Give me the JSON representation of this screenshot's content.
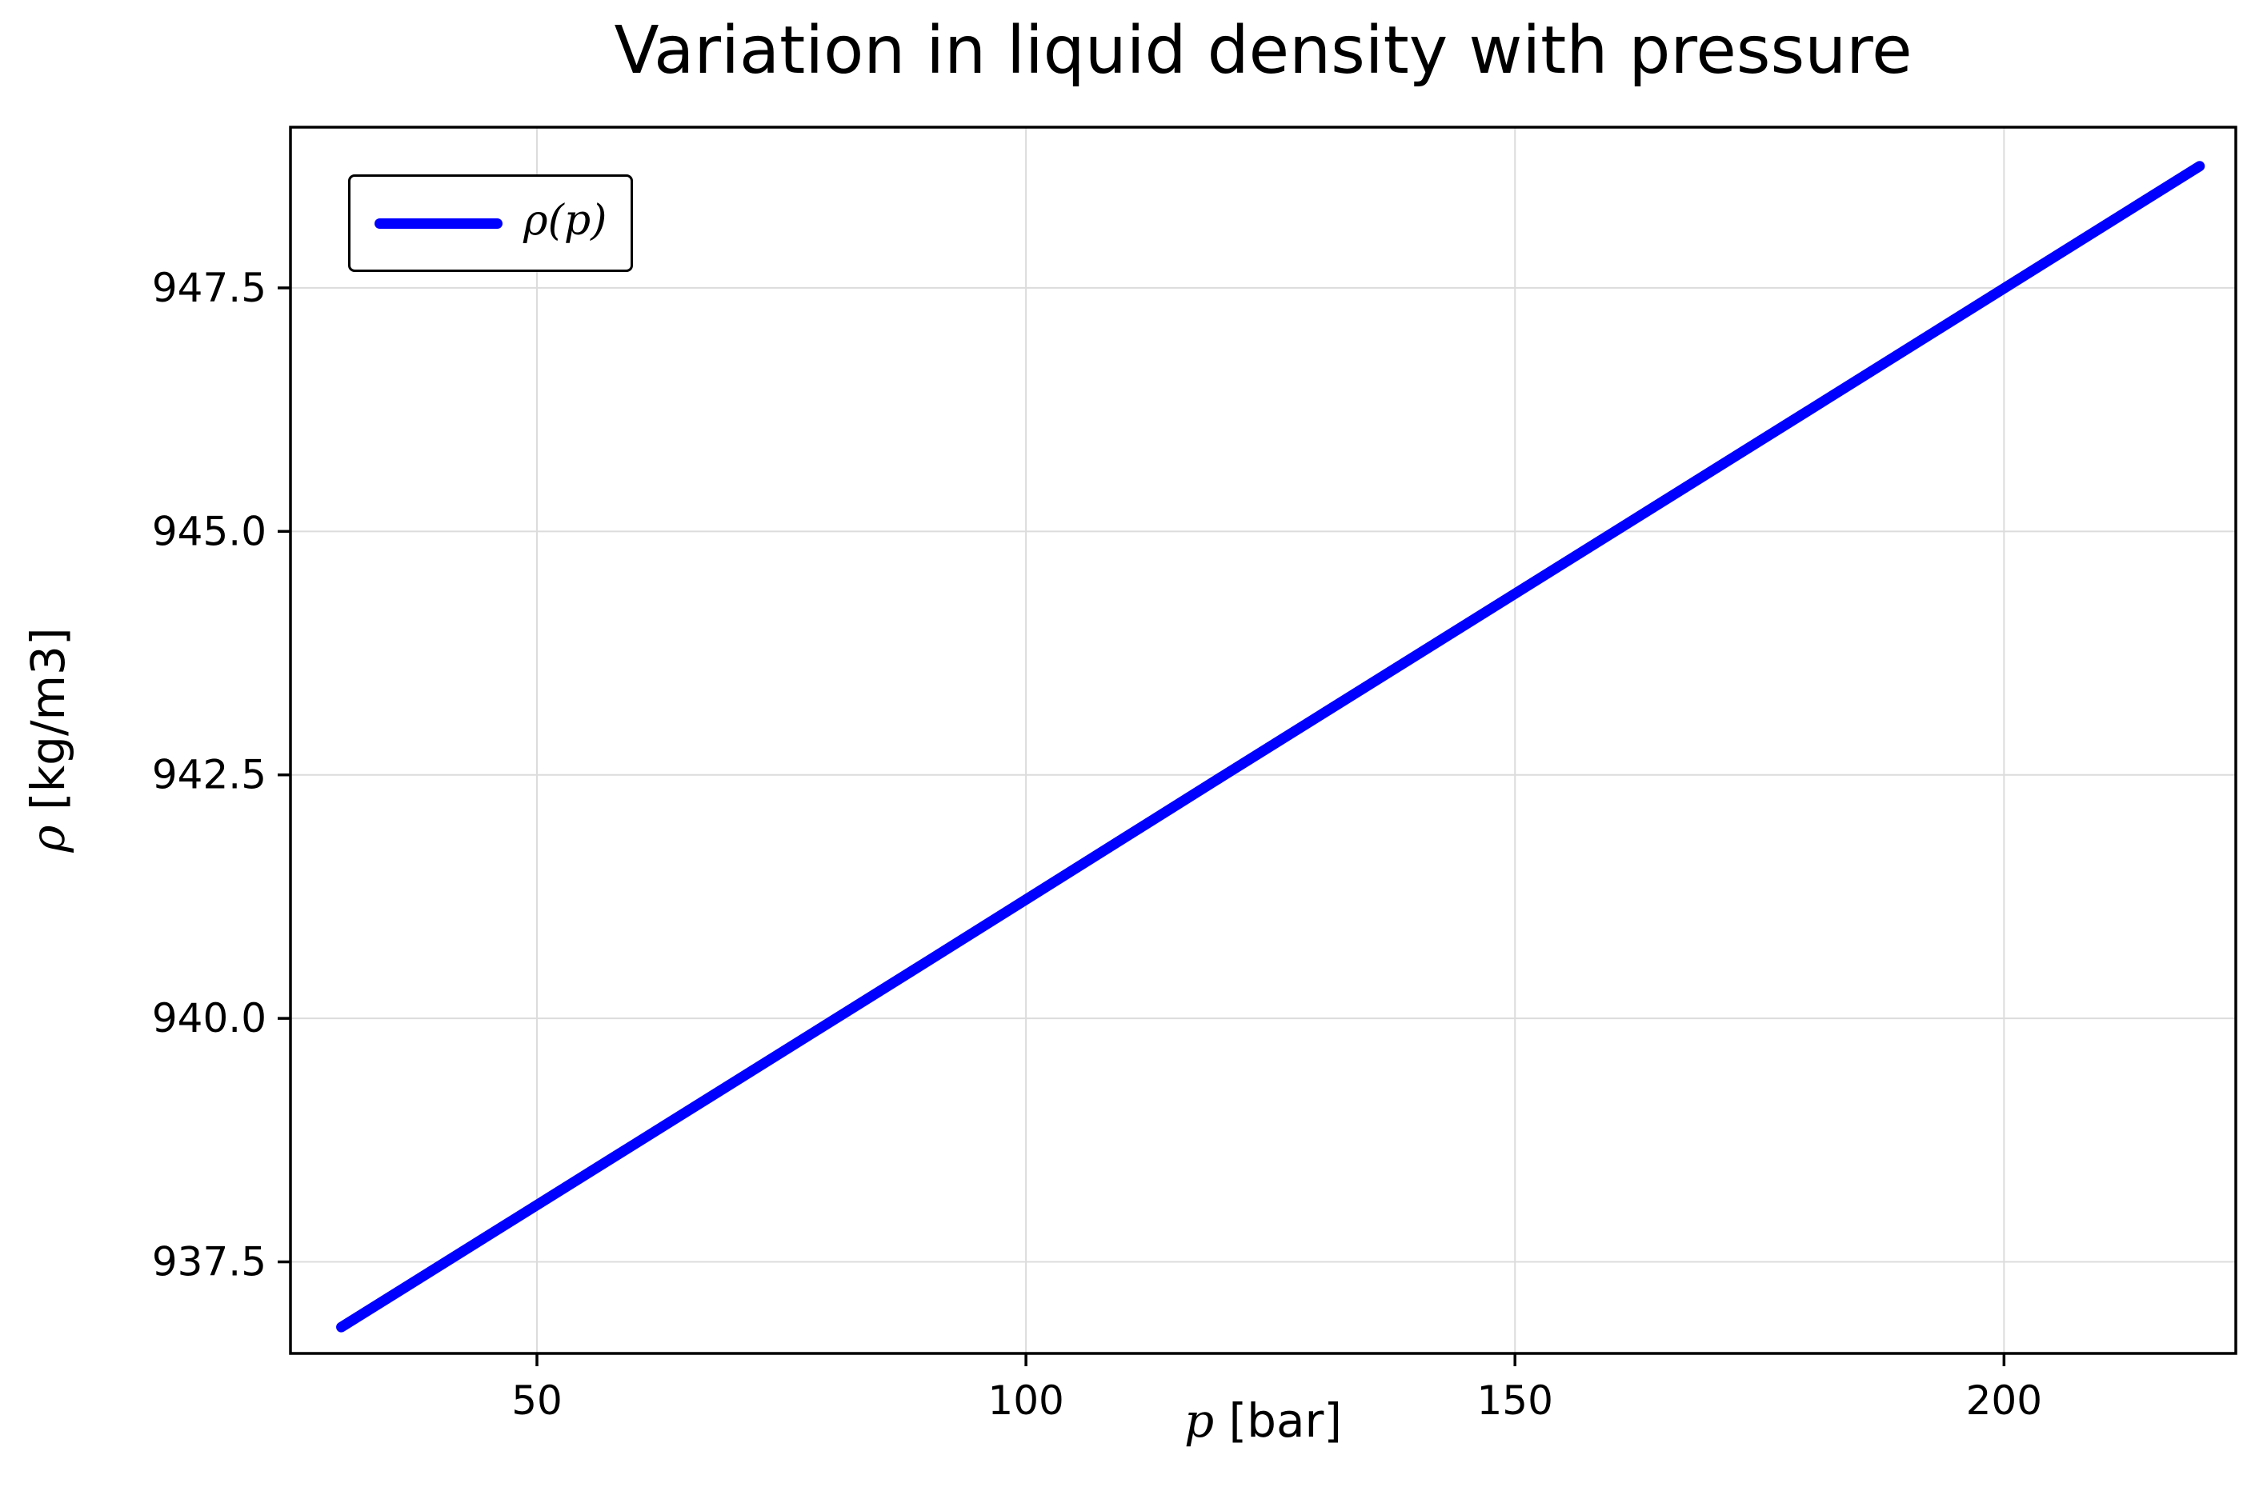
{
  "title": "Variation in liquid density with pressure",
  "axes": {
    "xlabel_symbol": "p",
    "xlabel_rest": " [bar]",
    "ylabel_symbol": "ρ",
    "ylabel_rest": " [kg/m3]"
  },
  "legend": {
    "label": "ρ(p)"
  },
  "colors": {
    "line": "#0000ff",
    "grid": "#dcdcdc",
    "frame": "#000000",
    "tick": "#000000",
    "background": "#ffffff"
  },
  "chart_data": {
    "type": "line",
    "title": "Variation in liquid density with pressure",
    "xlabel": "p [bar]",
    "ylabel": "ρ [kg/m3]",
    "series": [
      {
        "name": "ρ(p)",
        "x": [
          30,
          60,
          90,
          120,
          150,
          180,
          220
        ],
        "values": [
          936.83,
          938.71,
          940.59,
          942.48,
          944.36,
          946.24,
          948.75
        ]
      }
    ],
    "xticks": [
      50,
      100,
      150,
      200
    ],
    "xtick_labels": [
      "50",
      "100",
      "150",
      "200"
    ],
    "yticks": [
      937.5,
      940.0,
      942.5,
      945.0,
      947.5
    ],
    "ytick_labels": [
      "937.5",
      "940.0",
      "942.5",
      "945.0",
      "947.5"
    ],
    "xlim": [
      24.8,
      223.7
    ],
    "ylim": [
      936.56,
      949.15
    ],
    "grid": true,
    "legend_position": "upper left"
  }
}
